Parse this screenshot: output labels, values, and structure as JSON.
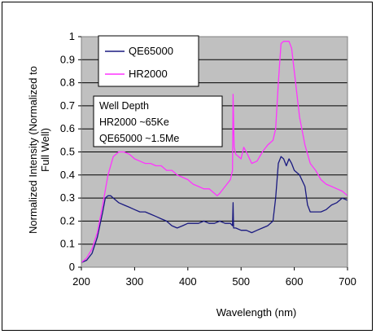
{
  "chart_data": {
    "type": "line",
    "title": "",
    "xlabel": "Wavelength (nm)",
    "ylabel_lines": [
      "Normalized Intensity (Normalized to",
      "Full Well)"
    ],
    "xlim": [
      200,
      700
    ],
    "ylim": [
      0,
      1
    ],
    "x_ticks": [
      "200",
      "300",
      "400",
      "500",
      "600",
      "700"
    ],
    "y_ticks": [
      "0",
      "0.1",
      "0.2",
      "0.3",
      "0.4",
      "0.5",
      "0.6",
      "0.7",
      "0.8",
      "0.9",
      "1"
    ],
    "grid": true,
    "legend_position": "top-left",
    "series": [
      {
        "name": "QE65000",
        "color": "#1a1a80",
        "points": [
          [
            200,
            0.02
          ],
          [
            210,
            0.03
          ],
          [
            220,
            0.06
          ],
          [
            230,
            0.13
          ],
          [
            240,
            0.24
          ],
          [
            245,
            0.3
          ],
          [
            250,
            0.31
          ],
          [
            255,
            0.31
          ],
          [
            260,
            0.3
          ],
          [
            270,
            0.28
          ],
          [
            280,
            0.27
          ],
          [
            290,
            0.26
          ],
          [
            300,
            0.25
          ],
          [
            310,
            0.24
          ],
          [
            320,
            0.24
          ],
          [
            330,
            0.23
          ],
          [
            340,
            0.22
          ],
          [
            350,
            0.21
          ],
          [
            360,
            0.2
          ],
          [
            370,
            0.18
          ],
          [
            380,
            0.17
          ],
          [
            390,
            0.18
          ],
          [
            400,
            0.19
          ],
          [
            410,
            0.19
          ],
          [
            420,
            0.19
          ],
          [
            430,
            0.2
          ],
          [
            440,
            0.19
          ],
          [
            450,
            0.19
          ],
          [
            460,
            0.2
          ],
          [
            470,
            0.19
          ],
          [
            480,
            0.19
          ],
          [
            484,
            0.18
          ],
          [
            485,
            0.28
          ],
          [
            486,
            0.17
          ],
          [
            490,
            0.17
          ],
          [
            500,
            0.16
          ],
          [
            510,
            0.16
          ],
          [
            520,
            0.15
          ],
          [
            530,
            0.16
          ],
          [
            540,
            0.17
          ],
          [
            550,
            0.18
          ],
          [
            560,
            0.2
          ],
          [
            565,
            0.3
          ],
          [
            570,
            0.45
          ],
          [
            575,
            0.48
          ],
          [
            580,
            0.47
          ],
          [
            585,
            0.44
          ],
          [
            590,
            0.47
          ],
          [
            595,
            0.45
          ],
          [
            600,
            0.42
          ],
          [
            610,
            0.4
          ],
          [
            620,
            0.35
          ],
          [
            625,
            0.27
          ],
          [
            630,
            0.24
          ],
          [
            640,
            0.24
          ],
          [
            650,
            0.24
          ],
          [
            660,
            0.25
          ],
          [
            670,
            0.27
          ],
          [
            680,
            0.28
          ],
          [
            690,
            0.3
          ],
          [
            700,
            0.29
          ]
        ]
      },
      {
        "name": "HR2000",
        "color": "#ff33ff",
        "points": [
          [
            200,
            0.02
          ],
          [
            210,
            0.04
          ],
          [
            220,
            0.08
          ],
          [
            230,
            0.15
          ],
          [
            240,
            0.27
          ],
          [
            250,
            0.4
          ],
          [
            260,
            0.48
          ],
          [
            270,
            0.5
          ],
          [
            280,
            0.5
          ],
          [
            290,
            0.49
          ],
          [
            300,
            0.47
          ],
          [
            310,
            0.46
          ],
          [
            320,
            0.45
          ],
          [
            330,
            0.45
          ],
          [
            340,
            0.44
          ],
          [
            350,
            0.44
          ],
          [
            360,
            0.42
          ],
          [
            370,
            0.42
          ],
          [
            380,
            0.4
          ],
          [
            390,
            0.39
          ],
          [
            400,
            0.38
          ],
          [
            410,
            0.36
          ],
          [
            420,
            0.35
          ],
          [
            430,
            0.34
          ],
          [
            440,
            0.34
          ],
          [
            450,
            0.32
          ],
          [
            455,
            0.31
          ],
          [
            460,
            0.32
          ],
          [
            470,
            0.35
          ],
          [
            480,
            0.38
          ],
          [
            484,
            0.42
          ],
          [
            485,
            0.75
          ],
          [
            487,
            0.52
          ],
          [
            490,
            0.49
          ],
          [
            500,
            0.47
          ],
          [
            505,
            0.52
          ],
          [
            510,
            0.5
          ],
          [
            520,
            0.45
          ],
          [
            530,
            0.46
          ],
          [
            540,
            0.5
          ],
          [
            550,
            0.53
          ],
          [
            560,
            0.55
          ],
          [
            565,
            0.6
          ],
          [
            570,
            0.8
          ],
          [
            575,
            0.97
          ],
          [
            580,
            0.98
          ],
          [
            585,
            0.98
          ],
          [
            590,
            0.98
          ],
          [
            595,
            0.95
          ],
          [
            600,
            0.85
          ],
          [
            610,
            0.65
          ],
          [
            620,
            0.53
          ],
          [
            630,
            0.45
          ],
          [
            640,
            0.42
          ],
          [
            650,
            0.38
          ],
          [
            660,
            0.36
          ],
          [
            670,
            0.35
          ],
          [
            680,
            0.34
          ],
          [
            690,
            0.33
          ],
          [
            700,
            0.31
          ]
        ]
      }
    ],
    "annotation": [
      "Well Depth",
      "HR2000 ~65Ke",
      "QE65000 ~1.5Me"
    ]
  }
}
